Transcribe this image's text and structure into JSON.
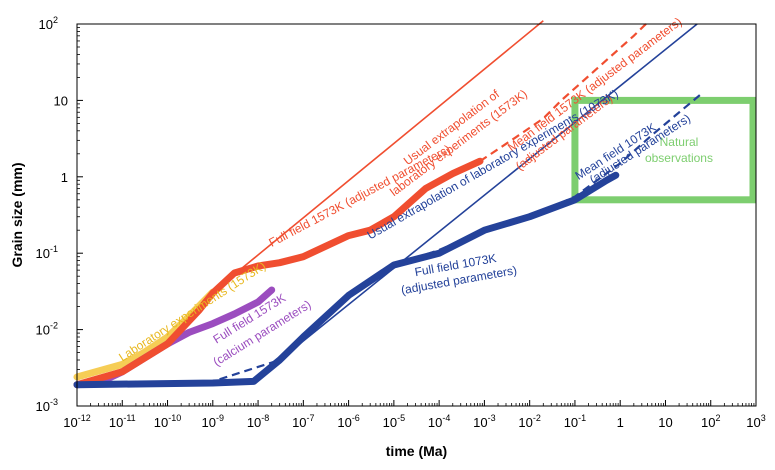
{
  "chart_data": {
    "type": "line",
    "title": "",
    "xlabel": "time (Ma)",
    "ylabel": "Grain size (mm)",
    "x_scale": "log",
    "y_scale": "log",
    "xlim": [
      1e-12,
      1000
    ],
    "ylim": [
      0.001,
      100
    ],
    "grid": false,
    "x_ticks": [
      {
        "v": 1e-12,
        "base": "10",
        "exp": "-12"
      },
      {
        "v": 1e-11,
        "base": "10",
        "exp": "-11"
      },
      {
        "v": 1e-10,
        "base": "10",
        "exp": "-10"
      },
      {
        "v": 1e-09,
        "base": "10",
        "exp": "-9"
      },
      {
        "v": 1e-08,
        "base": "10",
        "exp": "-8"
      },
      {
        "v": 1e-07,
        "base": "10",
        "exp": "-7"
      },
      {
        "v": 1e-06,
        "base": "10",
        "exp": "-6"
      },
      {
        "v": 1e-05,
        "base": "10",
        "exp": "-5"
      },
      {
        "v": 0.0001,
        "base": "10",
        "exp": "-4"
      },
      {
        "v": 0.001,
        "base": "10",
        "exp": "-3"
      },
      {
        "v": 0.01,
        "base": "10",
        "exp": "-2"
      },
      {
        "v": 0.1,
        "base": "10",
        "exp": "-1"
      },
      {
        "v": 1,
        "base": "1",
        "exp": ""
      },
      {
        "v": 10,
        "base": "10",
        "exp": ""
      },
      {
        "v": 100,
        "base": "10",
        "exp": "2"
      },
      {
        "v": 1000,
        "base": "10",
        "exp": "3"
      }
    ],
    "y_ticks": [
      {
        "v": 0.001,
        "base": "10",
        "exp": "-3"
      },
      {
        "v": 0.01,
        "base": "10",
        "exp": "-2"
      },
      {
        "v": 0.1,
        "base": "10",
        "exp": "-1"
      },
      {
        "v": 1,
        "base": "1",
        "exp": ""
      },
      {
        "v": 10,
        "base": "10",
        "exp": ""
      },
      {
        "v": 100,
        "base": "10",
        "exp": "2"
      }
    ],
    "series": [
      {
        "name": "Laboratory experiments (1573K)",
        "color": "#f5c842",
        "style": "thick",
        "points": [
          [
            1e-12,
            0.0024
          ],
          [
            1e-11,
            0.0035
          ],
          [
            3e-11,
            0.005
          ],
          [
            1e-10,
            0.008
          ],
          [
            3e-10,
            0.015
          ],
          [
            1e-09,
            0.031
          ]
        ]
      },
      {
        "name": "Full field 1573K (calcium parameters)",
        "color": "#9b4dbf",
        "style": "thick",
        "points": [
          [
            1e-12,
            0.0019
          ],
          [
            3e-12,
            0.002
          ],
          [
            1e-11,
            0.0028
          ],
          [
            3e-11,
            0.0042
          ],
          [
            1e-10,
            0.0065
          ],
          [
            3e-10,
            0.0092
          ],
          [
            1e-09,
            0.012
          ],
          [
            3e-09,
            0.016
          ],
          [
            1e-08,
            0.023
          ],
          [
            2e-08,
            0.033
          ]
        ]
      },
      {
        "name": "Full field 1573K (adjusted parameters)",
        "color": "#f04e30",
        "style": "thick",
        "points": [
          [
            1e-12,
            0.0019
          ],
          [
            1e-11,
            0.0028
          ],
          [
            1e-10,
            0.0065
          ],
          [
            5e-10,
            0.018
          ],
          [
            1e-09,
            0.03
          ],
          [
            3e-09,
            0.055
          ],
          [
            1e-08,
            0.068
          ],
          [
            3e-08,
            0.075
          ],
          [
            1e-07,
            0.09
          ],
          [
            1e-06,
            0.17
          ],
          [
            3e-06,
            0.2
          ],
          [
            1e-05,
            0.3
          ],
          [
            5e-05,
            0.7
          ],
          [
            0.0002,
            1.1
          ],
          [
            0.0008,
            1.6
          ]
        ]
      },
      {
        "name": "Mean field 1573K (adjusted parameters)",
        "color": "#f04e30",
        "style": "dashed",
        "points": [
          [
            0.0008,
            1.6
          ],
          [
            0.005,
            3.3
          ],
          [
            0.02,
            5.8
          ],
          [
            0.05,
            10
          ],
          [
            2,
            70
          ],
          [
            4,
            105
          ]
        ]
      },
      {
        "name": "Usual extrapolation of laboratory experiments (1573K)",
        "color": "#f04e30",
        "style": "thin",
        "points": [
          [
            1e-09,
            0.031
          ],
          [
            0.02,
            110
          ]
        ]
      },
      {
        "name": "Full field 1073K (adjusted parameters)",
        "color": "#24429a",
        "style": "thick",
        "points": [
          [
            1e-12,
            0.0019
          ],
          [
            1e-09,
            0.002
          ],
          [
            8e-09,
            0.0021
          ],
          [
            3e-08,
            0.004
          ],
          [
            1e-07,
            0.008
          ],
          [
            1e-06,
            0.028
          ],
          [
            1e-05,
            0.07
          ],
          [
            0.0001,
            0.1
          ],
          [
            0.001,
            0.2
          ],
          [
            0.01,
            0.3
          ],
          [
            0.1,
            0.5
          ],
          [
            0.5,
            0.9
          ],
          [
            0.8,
            1.05
          ]
        ]
      },
      {
        "name": "Mean field 1073K (adjusted parameters)",
        "color": "#24429a",
        "style": "dashed",
        "points": [
          [
            1e-12,
            0.0018
          ],
          [
            1e-09,
            0.0021
          ],
          [
            3e-08,
            0.004
          ],
          [
            1e-06,
            0.028
          ],
          [
            1e-05,
            0.07
          ],
          [
            0.0001,
            0.11
          ],
          [
            0.001,
            0.2
          ],
          [
            0.01,
            0.3
          ],
          [
            0.1,
            0.55
          ],
          [
            1,
            1.5
          ],
          [
            5,
            3.5
          ],
          [
            60,
            12
          ]
        ]
      },
      {
        "name": "Usual extrapolation of laboratory experiments (1073K)",
        "color": "#24429a",
        "style": "thin",
        "points": [
          [
            1e-12,
            0.0019
          ],
          [
            7e-09,
            0.002
          ],
          [
            50,
            100
          ]
        ]
      }
    ],
    "natural_observations": {
      "label": [
        "Natural",
        "observations"
      ],
      "x_range": [
        0.1,
        1000
      ],
      "y_range": [
        0.5,
        10
      ],
      "color": "#7dce6f"
    },
    "annotations": [
      {
        "text": "Laboratory experiments (1573K)",
        "color": "#e8b820",
        "x": 1e-11,
        "y": 0.0038,
        "angle": -33
      },
      {
        "text": "Usual extrapolation of",
        "color": "#f04e30",
        "x": 2e-05,
        "y": 1.4,
        "angle": -37
      },
      {
        "text": "laboratory experiments (1573K)",
        "color": "#f04e30",
        "x": 1e-05,
        "y": 0.55,
        "angle": -37
      },
      {
        "text": "Mean field 1573K (adjusted parameters)",
        "color": "#f04e30",
        "x": 0.004,
        "y": 2.1,
        "angle": -37
      },
      {
        "text": "(adjusted parameters)",
        "color": "#f04e30",
        "x": 0.006,
        "y": 1.2,
        "angle": -37
      },
      {
        "text": "Full field 1573K (adjusted parameters)",
        "color": "#f04e30",
        "x": 2e-08,
        "y": 0.12,
        "angle": -28
      },
      {
        "text": "Full field 1573K",
        "color": "#9b4dbf",
        "x": 1.2e-09,
        "y": 0.0065,
        "angle": -32
      },
      {
        "text": "(calcium parameters)",
        "color": "#9b4dbf",
        "x": 1.2e-09,
        "y": 0.0033,
        "angle": -32
      },
      {
        "text": "Usual extrapolation of laboratory experiments (1073K)",
        "color": "#24429a",
        "x": 3e-06,
        "y": 0.15,
        "angle": -30
      },
      {
        "text": "Mean field 1073K",
        "color": "#24429a",
        "x": 0.12,
        "y": 0.9,
        "angle": -33
      },
      {
        "text": "(adjusted parameters)",
        "color": "#24429a",
        "x": 0.25,
        "y": 0.8,
        "angle": -33
      },
      {
        "text": "Full field 1073K",
        "color": "#24429a",
        "x": 3e-05,
        "y": 0.05,
        "angle": -10
      },
      {
        "text": "(adjusted parameters)",
        "color": "#24429a",
        "x": 1.5e-05,
        "y": 0.029,
        "angle": -10
      }
    ]
  }
}
